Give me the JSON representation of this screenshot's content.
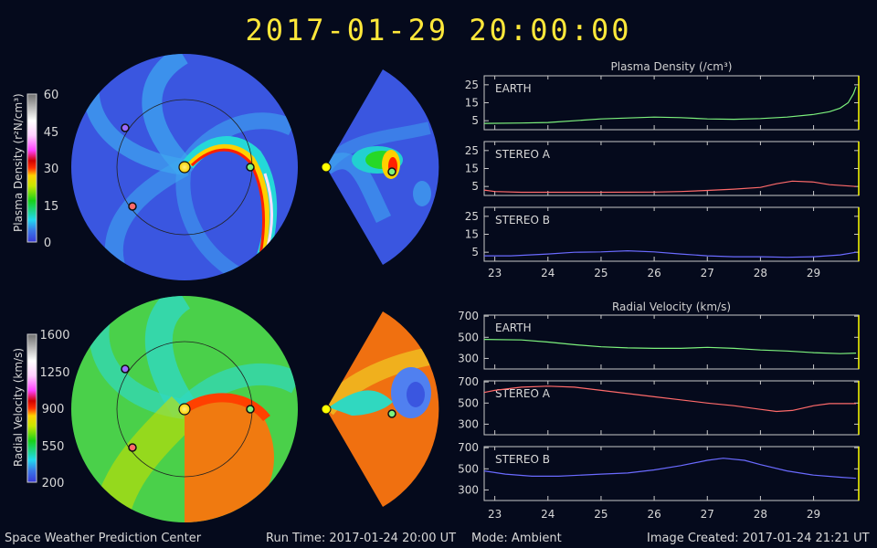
{
  "title": "2017-01-29  20:00:00",
  "footer": {
    "org": "Space Weather Prediction Center",
    "run_time": "Run Time: 2017-01-24 20:00 UT",
    "mode": "Mode: Ambient",
    "created": "Image Created: 2017-01-24 21:21 UT"
  },
  "colorbars": {
    "density": {
      "label": "Plasma Density (r²N/cm³)",
      "ticks": [
        "60",
        "45",
        "30",
        "15",
        "0"
      ]
    },
    "velocity": {
      "label": "Radial Velocity (km/s)",
      "ticks": [
        "1600",
        "1250",
        "900",
        "550",
        "200"
      ]
    }
  },
  "colors": {
    "earth": "#7df27d",
    "stereo_a": "#ff6a6a",
    "stereo_b": "#6a6aff",
    "marker": "#ffff00",
    "title": "#ffe83a"
  },
  "chart_data": [
    {
      "type": "line",
      "title": "Plasma Density (/cm³)",
      "xlabel": "",
      "ylabel": "",
      "x_ticks": [
        "23",
        "24",
        "25",
        "26",
        "27",
        "28",
        "29"
      ],
      "xlim": [
        22.8,
        29.85
      ],
      "ylim": [
        0,
        30
      ],
      "y_ticks": [
        "25",
        "15",
        "5"
      ],
      "y_tick_values": [
        25,
        15,
        5
      ],
      "series": [
        {
          "name": "EARTH",
          "x": [
            22.8,
            23.5,
            24,
            24.5,
            25,
            25.5,
            26,
            26.5,
            27,
            27.5,
            28,
            28.5,
            29,
            29.3,
            29.5,
            29.65,
            29.75,
            29.8
          ],
          "y": [
            3.5,
            3.7,
            4,
            5,
            6,
            6.5,
            7,
            6.7,
            6,
            5.8,
            6.2,
            7,
            8.5,
            10,
            12,
            15,
            20,
            24
          ]
        },
        {
          "name": "STEREO A",
          "x": [
            22.8,
            23,
            23.5,
            24,
            25,
            26,
            26.5,
            27,
            27.5,
            28,
            28.3,
            28.6,
            29,
            29.3,
            29.8
          ],
          "y": [
            3,
            2.2,
            1.8,
            1.8,
            1.8,
            1.9,
            2.2,
            2.8,
            3.5,
            4.5,
            6.5,
            8,
            7.5,
            6,
            5
          ]
        },
        {
          "name": "STEREO B",
          "x": [
            22.8,
            23.3,
            24,
            24.5,
            25,
            25.5,
            26,
            26.5,
            27,
            27.5,
            28,
            28.5,
            29,
            29.5,
            29.8
          ],
          "y": [
            3,
            3,
            4,
            5,
            5.2,
            5.8,
            5.2,
            4,
            3,
            2.5,
            2.5,
            2.2,
            2.5,
            3.5,
            5
          ]
        }
      ]
    },
    {
      "type": "line",
      "title": "Radial Velocity (km/s)",
      "xlabel": "",
      "ylabel": "",
      "x_ticks": [
        "23",
        "24",
        "25",
        "26",
        "27",
        "28",
        "29"
      ],
      "xlim": [
        22.8,
        29.85
      ],
      "ylim": [
        200,
        710
      ],
      "y_ticks": [
        "700",
        "500",
        "300"
      ],
      "y_tick_values": [
        700,
        500,
        300
      ],
      "series": [
        {
          "name": "EARTH",
          "x": [
            22.8,
            23.5,
            24,
            24.5,
            25,
            25.5,
            26,
            26.5,
            27,
            27.5,
            28,
            28.5,
            29,
            29.5,
            29.8
          ],
          "y": [
            480,
            475,
            455,
            430,
            410,
            400,
            395,
            395,
            405,
            395,
            380,
            370,
            355,
            345,
            350
          ]
        },
        {
          "name": "STEREO A",
          "x": [
            22.8,
            23,
            23.5,
            24,
            24.5,
            25,
            25.5,
            26,
            26.5,
            27,
            27.5,
            28,
            28.3,
            28.6,
            29,
            29.3,
            29.8
          ],
          "y": [
            600,
            620,
            650,
            660,
            650,
            620,
            590,
            560,
            530,
            500,
            475,
            440,
            420,
            430,
            475,
            495,
            495
          ]
        },
        {
          "name": "STEREO B",
          "x": [
            22.8,
            23.2,
            23.7,
            24.2,
            25,
            25.5,
            26,
            26.5,
            27,
            27.3,
            27.7,
            28,
            28.5,
            29,
            29.5,
            29.8
          ],
          "y": [
            480,
            450,
            430,
            430,
            450,
            460,
            490,
            530,
            580,
            600,
            580,
            540,
            480,
            440,
            420,
            410
          ]
        }
      ]
    }
  ]
}
